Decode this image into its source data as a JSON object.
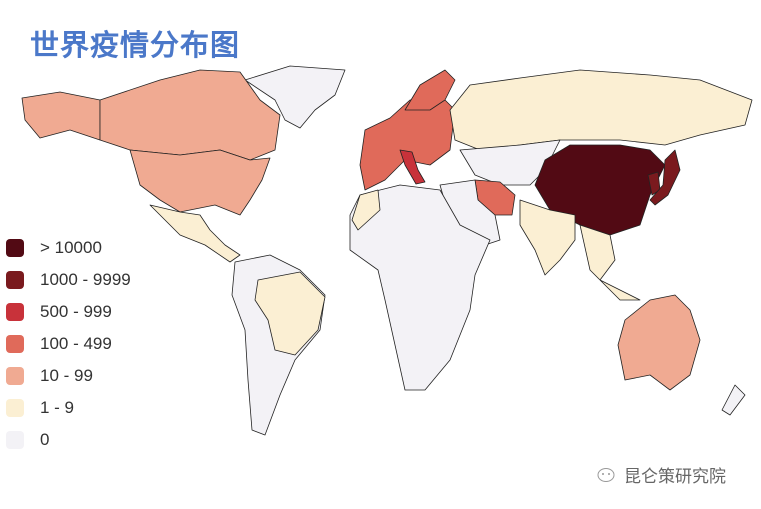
{
  "title": "世界疫情分布图",
  "legend": [
    {
      "label": "> 10000",
      "color": "#520a14"
    },
    {
      "label": "1000 - 9999",
      "color": "#7a1a1e"
    },
    {
      "label": "500 - 999",
      "color": "#c8323a"
    },
    {
      "label": "100 - 499",
      "color": "#e06a5a"
    },
    {
      "label": "10 - 99",
      "color": "#f0aa92"
    },
    {
      "label": "1 - 9",
      "color": "#fbefd3"
    },
    {
      "label": "0",
      "color": "#f3f2f6"
    }
  ],
  "watermark": "昆仑策研究院"
}
